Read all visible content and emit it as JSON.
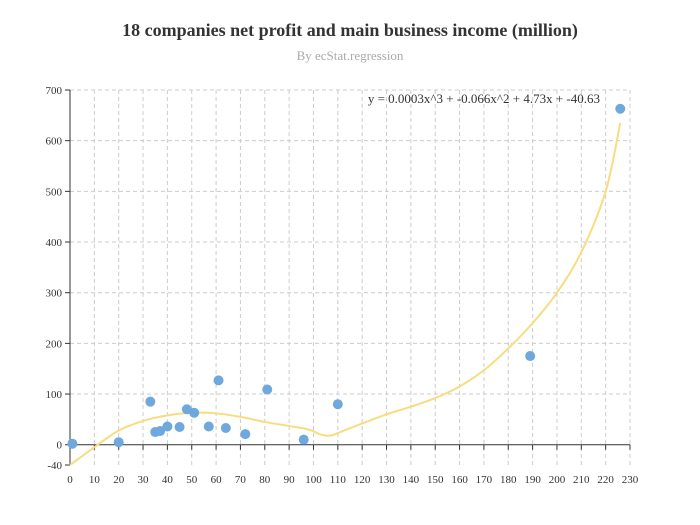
{
  "chart_data": {
    "type": "scatter",
    "title": "18 companies net profit and main business income (million)",
    "subtitle": "By ecStat.regression",
    "xlim": [
      0,
      230
    ],
    "ylim": [
      -40,
      700
    ],
    "x_ticks": [
      0,
      10,
      20,
      30,
      40,
      50,
      60,
      70,
      80,
      90,
      100,
      110,
      120,
      130,
      140,
      150,
      160,
      170,
      180,
      190,
      200,
      210,
      220,
      230
    ],
    "y_ticks": [
      -40,
      0,
      100,
      200,
      300,
      400,
      500,
      600,
      700
    ],
    "grid": true,
    "equation_label": "y = 0.0003x^3 + -0.066x^2 + 4.73x + -40.63",
    "points": [
      {
        "x": 1,
        "y": 2
      },
      {
        "x": 20,
        "y": 5
      },
      {
        "x": 33,
        "y": 85
      },
      {
        "x": 35,
        "y": 25
      },
      {
        "x": 37,
        "y": 27
      },
      {
        "x": 40,
        "y": 36
      },
      {
        "x": 45,
        "y": 35
      },
      {
        "x": 48,
        "y": 70
      },
      {
        "x": 51,
        "y": 63
      },
      {
        "x": 57,
        "y": 36
      },
      {
        "x": 61,
        "y": 127
      },
      {
        "x": 64,
        "y": 33
      },
      {
        "x": 72,
        "y": 21
      },
      {
        "x": 81,
        "y": 109
      },
      {
        "x": 96,
        "y": 10
      },
      {
        "x": 110,
        "y": 80
      },
      {
        "x": 189,
        "y": 175
      },
      {
        "x": 226,
        "y": 663
      }
    ],
    "regression_curve": [
      {
        "x": 0,
        "y": -40
      },
      {
        "x": 10,
        "y": -5
      },
      {
        "x": 20,
        "y": 28
      },
      {
        "x": 30,
        "y": 47
      },
      {
        "x": 40,
        "y": 58
      },
      {
        "x": 50,
        "y": 63
      },
      {
        "x": 60,
        "y": 62
      },
      {
        "x": 70,
        "y": 55
      },
      {
        "x": 80,
        "y": 45
      },
      {
        "x": 90,
        "y": 37
      },
      {
        "x": 98,
        "y": 30
      },
      {
        "x": 103,
        "y": 20
      },
      {
        "x": 107,
        "y": 18
      },
      {
        "x": 112,
        "y": 27
      },
      {
        "x": 120,
        "y": 42
      },
      {
        "x": 130,
        "y": 60
      },
      {
        "x": 140,
        "y": 75
      },
      {
        "x": 150,
        "y": 92
      },
      {
        "x": 160,
        "y": 115
      },
      {
        "x": 170,
        "y": 147
      },
      {
        "x": 180,
        "y": 190
      },
      {
        "x": 190,
        "y": 240
      },
      {
        "x": 200,
        "y": 300
      },
      {
        "x": 210,
        "y": 380
      },
      {
        "x": 220,
        "y": 500
      },
      {
        "x": 226,
        "y": 635
      }
    ],
    "colors": {
      "points": "#6fa8dc",
      "curve": "#f7dc80",
      "grid": "#cccccc",
      "axis": "#333333"
    }
  }
}
